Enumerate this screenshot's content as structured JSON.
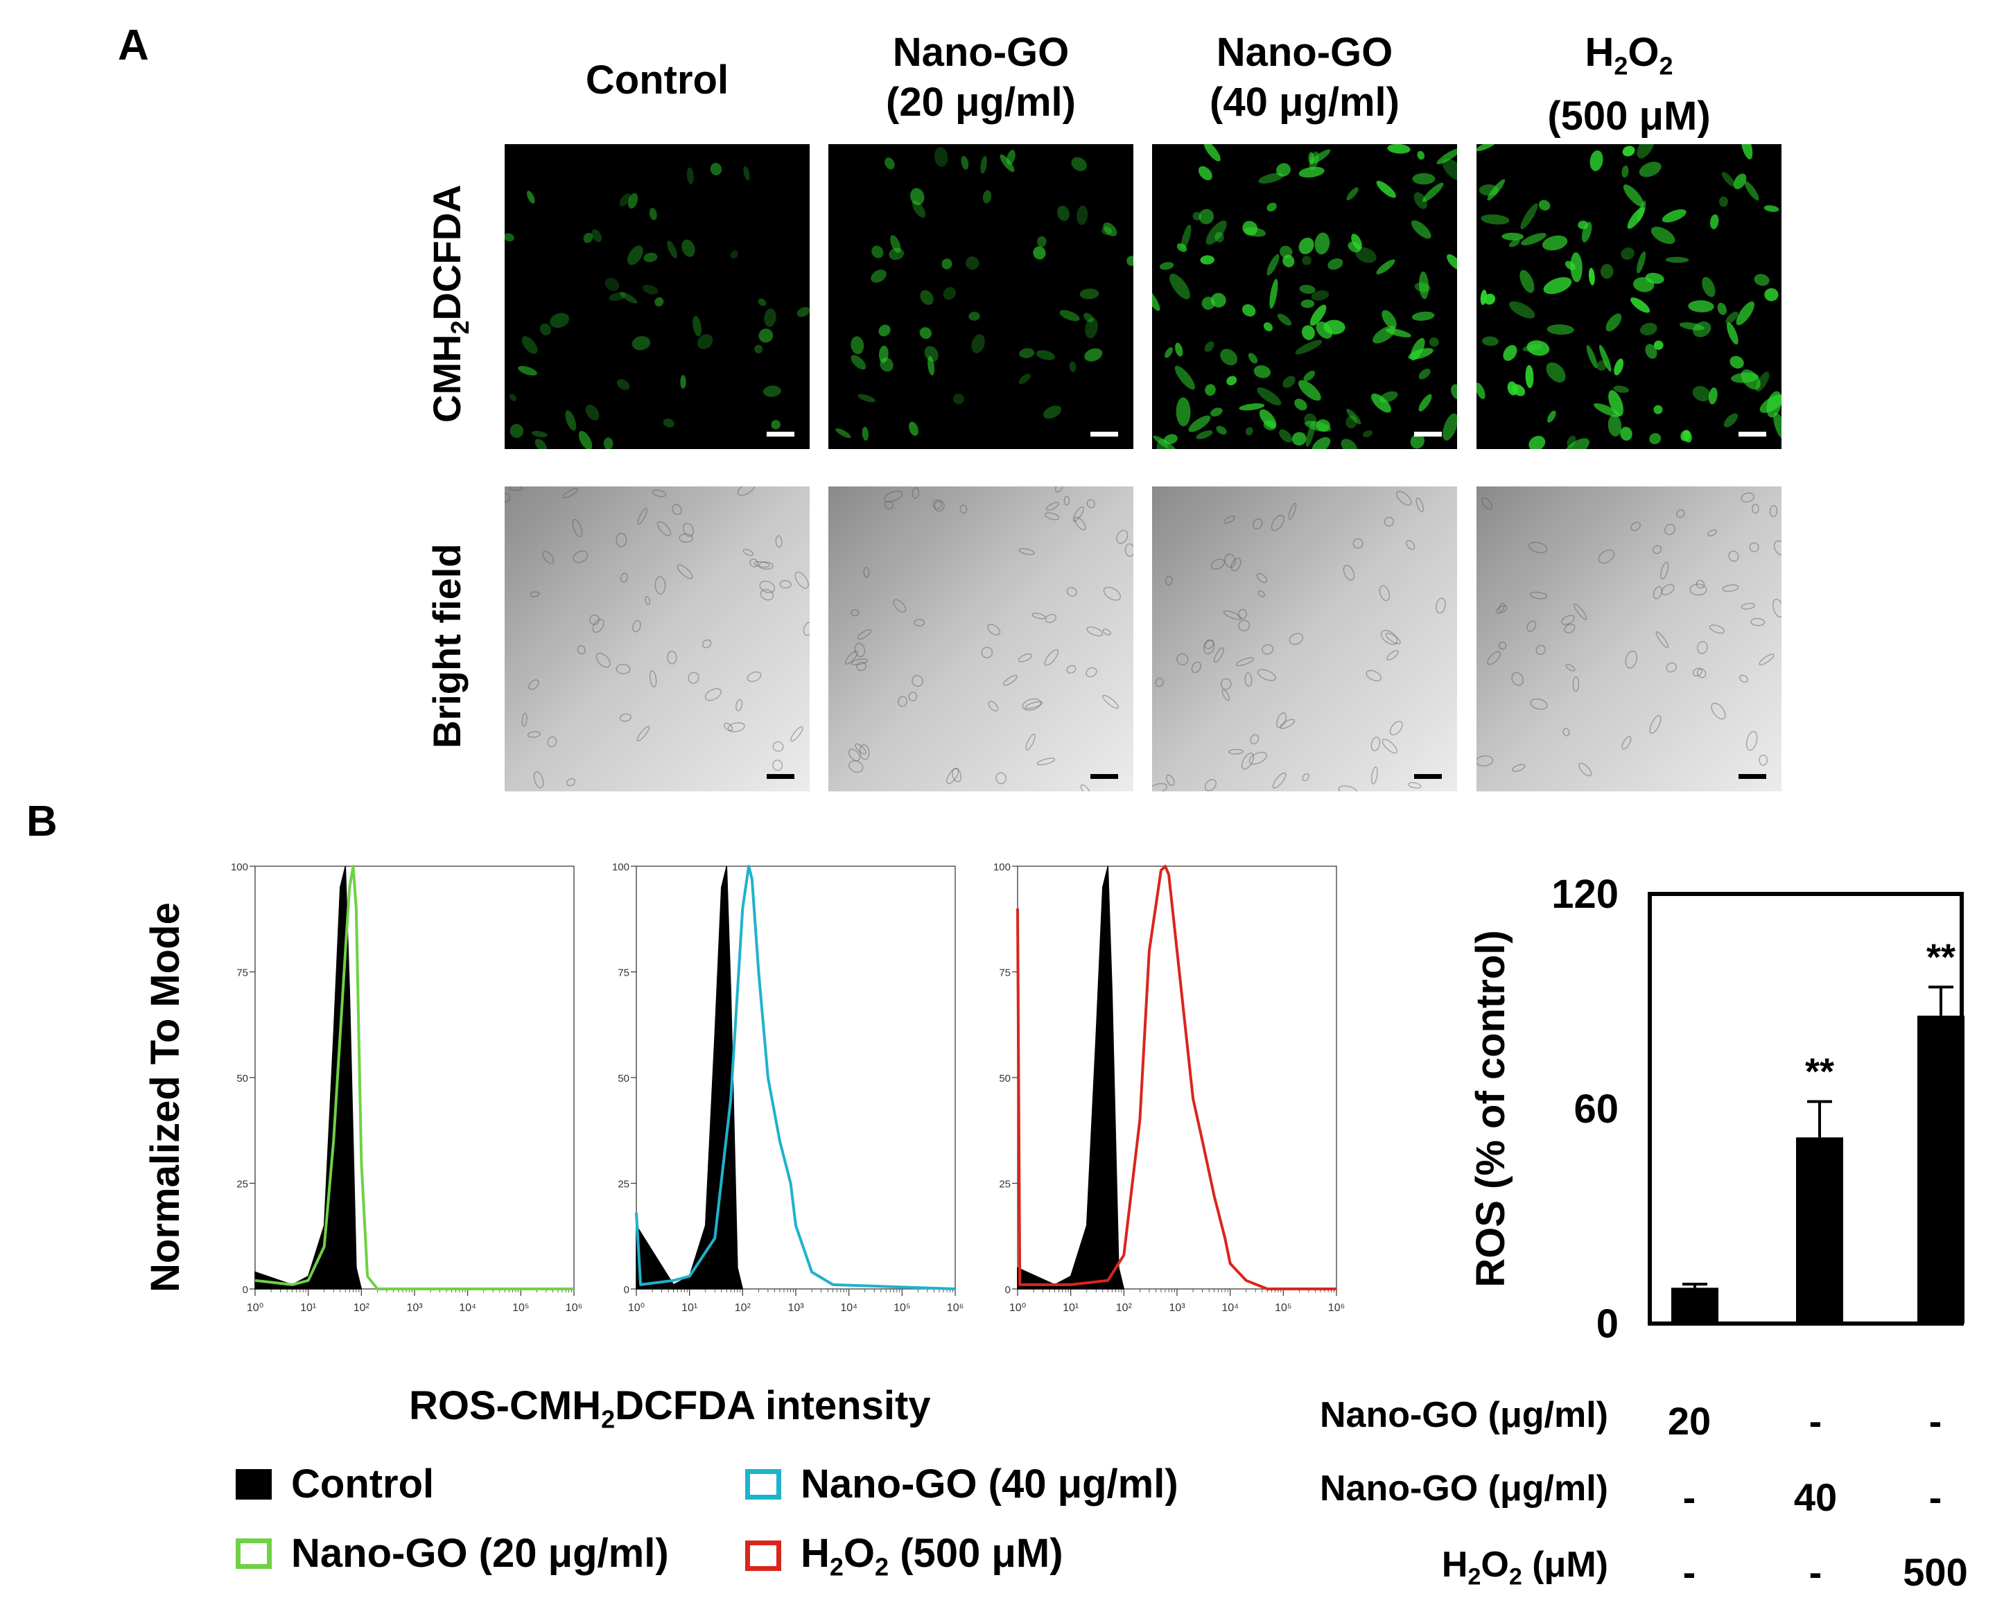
{
  "panel_a": {
    "letter": "A",
    "columns": [
      {
        "line1": "Control",
        "line2": ""
      },
      {
        "line1": "Nano-GO",
        "line2": "(20 μg/ml)"
      },
      {
        "line1": "Nano-GO",
        "line2": "(40 μg/ml)"
      },
      {
        "line1_main": "H",
        "line1_sub": "2",
        "line1_main2": "O",
        "line1_sub2": "2",
        "line2": "(500 μM)"
      }
    ],
    "row_fluorescence": {
      "main": "CMH",
      "sub": "2",
      "rest": "DCFDA"
    },
    "row_bright": "Bright field",
    "colors": {
      "fluorescence_bg": "#000000",
      "cell_green": "#2ed82e",
      "bright_bg": "#d8d8d8"
    }
  },
  "panel_b": {
    "letter": "B",
    "y_axis_label": "Normalized To Mode",
    "x_axis_label": {
      "main": "ROS-CMH",
      "sub": "2",
      "rest": "DCFDA intensity"
    },
    "histogram_ticks_y": [
      "0",
      "25",
      "50",
      "75",
      "100"
    ],
    "histogram_ticks_x": [
      "10⁰",
      "10¹",
      "10²",
      "10³",
      "10⁴",
      "10⁵",
      "10⁶"
    ],
    "legend": [
      {
        "label": "Control",
        "color": "#000000",
        "filled": true
      },
      {
        "label": "Nano-GO (40 μg/ml)",
        "color": "#1fb2cc",
        "filled": false
      },
      {
        "label": "Nano-GO (20 μg/ml)",
        "color": "#6fd146",
        "filled": false
      },
      {
        "label_main": "H",
        "label_sub": "2",
        "label_main2": "O",
        "label_sub2": "2",
        "label_rest": " (500 μM)",
        "color": "#d9261c",
        "filled": false
      }
    ]
  },
  "chart_data": [
    {
      "type": "line",
      "ylabel": "Normalized To Mode",
      "xlabel": "ROS-CMH2DCFDA intensity",
      "xscale": "log",
      "xlim": [
        1,
        1000000
      ],
      "ylim": [
        0,
        100
      ],
      "series": [
        {
          "name": "Control",
          "color": "#000000",
          "filled": true,
          "x": [
            1,
            5,
            10,
            20,
            30,
            40,
            50,
            60,
            80,
            100
          ],
          "y": [
            4,
            1,
            3,
            15,
            60,
            95,
            100,
            70,
            5,
            0
          ]
        },
        {
          "name": "Nano-GO (20 μg/ml)",
          "color": "#6fd146",
          "filled": false,
          "x": [
            1,
            5,
            10,
            20,
            30,
            50,
            60,
            70,
            80,
            100,
            130,
            200,
            1000000
          ],
          "y": [
            2,
            1,
            2,
            10,
            35,
            80,
            95,
            100,
            90,
            30,
            3,
            0,
            0
          ]
        }
      ]
    },
    {
      "type": "line",
      "ylabel": "Normalized To Mode",
      "xlabel": "ROS-CMH2DCFDA intensity",
      "xscale": "log",
      "xlim": [
        1,
        1000000
      ],
      "ylim": [
        0,
        100
      ],
      "series": [
        {
          "name": "Control",
          "color": "#000000",
          "filled": true,
          "x": [
            1,
            5,
            10,
            20,
            30,
            40,
            50,
            60,
            80,
            100
          ],
          "y": [
            15,
            1,
            3,
            15,
            60,
            95,
            100,
            70,
            5,
            0
          ]
        },
        {
          "name": "Nano-GO (40 μg/ml)",
          "color": "#1fb2cc",
          "filled": false,
          "x": [
            1,
            1.2,
            5,
            10,
            30,
            60,
            100,
            130,
            150,
            200,
            300,
            500,
            800,
            1000,
            2000,
            5000,
            1000000
          ],
          "y": [
            18,
            1,
            2,
            3,
            12,
            45,
            90,
            100,
            97,
            75,
            50,
            35,
            25,
            15,
            4,
            1,
            0
          ]
        }
      ]
    },
    {
      "type": "line",
      "ylabel": "Normalized To Mode",
      "xlabel": "ROS-CMH2DCFDA intensity",
      "xscale": "log",
      "xlim": [
        1,
        1000000
      ],
      "ylim": [
        0,
        100
      ],
      "series": [
        {
          "name": "Control",
          "color": "#000000",
          "filled": true,
          "x": [
            1,
            5,
            10,
            20,
            30,
            40,
            50,
            60,
            80,
            100
          ],
          "y": [
            5,
            1,
            3,
            15,
            60,
            95,
            100,
            70,
            5,
            0
          ]
        },
        {
          "name": "H2O2 (500 μM)",
          "color": "#d9261c",
          "filled": false,
          "x": [
            1,
            1.1,
            10,
            50,
            100,
            200,
            300,
            500,
            600,
            700,
            1000,
            2000,
            3000,
            5000,
            8000,
            10000,
            20000,
            50000,
            1000000
          ],
          "y": [
            90,
            1,
            1,
            2,
            8,
            40,
            80,
            99,
            100,
            98,
            80,
            45,
            35,
            22,
            12,
            6,
            2,
            0,
            0
          ]
        }
      ]
    },
    {
      "type": "bar",
      "ylabel": "ROS (% of control)",
      "ylim": [
        0,
        120
      ],
      "yticks": [
        "0",
        "60",
        "120"
      ],
      "categories": [
        "Nano-GO 20 μg/ml",
        "Nano-GO 40 μg/ml",
        "H2O2 500 μM"
      ],
      "values": [
        10,
        52,
        86
      ],
      "errors": [
        1,
        10,
        8
      ],
      "significance": [
        "",
        "**",
        "**"
      ],
      "conditions": [
        {
          "label_main": "Nano-GO",
          "label_unit": " (μg/ml)",
          "values": [
            "20",
            "-",
            "-"
          ]
        },
        {
          "label_main": "Nano-GO",
          "label_unit": " (μg/ml)",
          "values": [
            "-",
            "40",
            "-"
          ]
        },
        {
          "label_main": "H",
          "label_sub": "2",
          "label_main2": "O",
          "label_sub2": "2",
          "label_unit": " (μM)",
          "values": [
            "-",
            "-",
            "500"
          ]
        }
      ]
    }
  ]
}
